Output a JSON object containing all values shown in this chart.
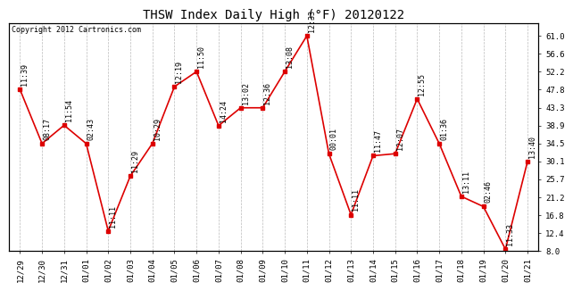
{
  "title": "THSW Index Daily High (°F) 20120122",
  "copyright": "Copyright 2012 Cartronics.com",
  "x_labels": [
    "12/29",
    "12/30",
    "12/31",
    "01/01",
    "01/02",
    "01/03",
    "01/04",
    "01/05",
    "01/06",
    "01/07",
    "01/08",
    "01/09",
    "01/10",
    "01/11",
    "01/12",
    "01/13",
    "01/14",
    "01/15",
    "01/16",
    "01/17",
    "01/18",
    "01/19",
    "01/20",
    "01/21"
  ],
  "y_values": [
    47.8,
    34.5,
    39.0,
    34.5,
    13.0,
    26.5,
    34.5,
    48.5,
    52.2,
    38.9,
    43.3,
    43.3,
    52.2,
    61.0,
    32.0,
    17.0,
    31.5,
    32.0,
    45.5,
    34.5,
    21.5,
    19.0,
    8.5,
    30.1
  ],
  "time_labels": [
    "11:39",
    "08:17",
    "11:54",
    "02:43",
    "11:11",
    "11:29",
    "10:29",
    "12:19",
    "11:50",
    "14:24",
    "13:02",
    "12:36",
    "13:08",
    "12:33",
    "00:01",
    "11:11",
    "11:47",
    "12:07",
    "12:55",
    "01:36",
    "13:11",
    "02:46",
    "11:33",
    "13:40"
  ],
  "ylim": [
    8.0,
    64.0
  ],
  "y_ticks_right": [
    61.0,
    56.6,
    52.2,
    47.8,
    43.3,
    38.9,
    34.5,
    30.1,
    25.7,
    21.2,
    16.8,
    12.4,
    8.0
  ],
  "line_color": "#dd0000",
  "marker_color": "#dd0000",
  "bg_color": "#ffffff",
  "grid_color": "#bbbbbb",
  "title_fontsize": 10,
  "tick_fontsize": 6.5,
  "annotation_fontsize": 6.0,
  "copyright_fontsize": 6.0
}
